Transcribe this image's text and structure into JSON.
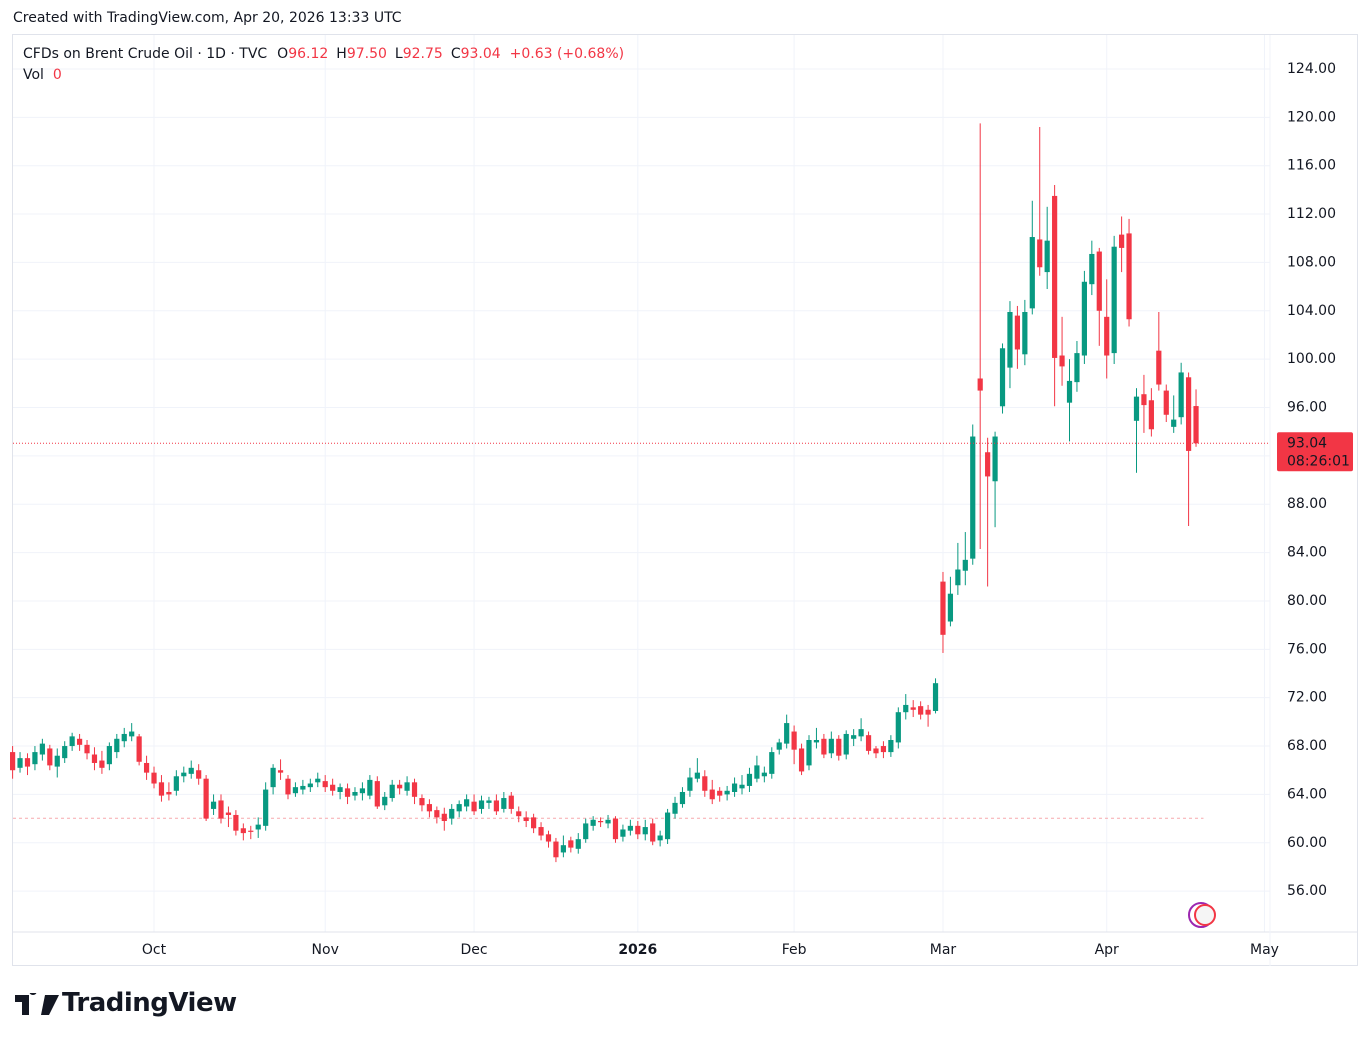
{
  "credit": "Created with TradingView.com, Apr 20, 2026 13:33 UTC",
  "brand": "TradingView",
  "chart_data": {
    "type": "candlestick",
    "legend": {
      "symbol": "CFDs on Brent Crude Oil · 1D · TVC",
      "fields": [
        {
          "key": "O",
          "value": "96.12"
        },
        {
          "key": "H",
          "value": "97.50"
        },
        {
          "key": "L",
          "value": "92.75"
        },
        {
          "key": "C",
          "value": "93.04"
        }
      ],
      "change": "+0.63 (+0.68%)",
      "volume_key": "Vol",
      "volume_value": "0"
    },
    "price_tag": {
      "value": 93.04,
      "label": "93.04",
      "countdown": "08:26:01"
    },
    "reference_line": 62.03,
    "up_color": "#089981",
    "down_color": "#f23645",
    "ylim": [
      52.62,
      126.81
    ],
    "yticks": [
      {
        "value": 56,
        "label": "56.00"
      },
      {
        "value": 60,
        "label": "60.00"
      },
      {
        "value": 64,
        "label": "64.00"
      },
      {
        "value": 68,
        "label": "68.00"
      },
      {
        "value": 72,
        "label": "72.00"
      },
      {
        "value": 76,
        "label": "76.00"
      },
      {
        "value": 80,
        "label": "80.00"
      },
      {
        "value": 84,
        "label": "84.00"
      },
      {
        "value": 88,
        "label": "88.00"
      },
      {
        "value": 92,
        "label": "92.00"
      },
      {
        "value": 96,
        "label": "96.00"
      },
      {
        "value": 100,
        "label": "100.00"
      },
      {
        "value": 104,
        "label": "104.00"
      },
      {
        "value": 108,
        "label": "108.00"
      },
      {
        "value": 112,
        "label": "112.00"
      },
      {
        "value": 116,
        "label": "116.00"
      },
      {
        "value": 120,
        "label": "120.00"
      },
      {
        "value": 124,
        "label": "124.00"
      }
    ],
    "grid": true,
    "future_categories": [
      "May"
    ],
    "categories": [
      null,
      null,
      null,
      null,
      null,
      null,
      null,
      null,
      null,
      null,
      null,
      null,
      null,
      null,
      null,
      null,
      null,
      null,
      null,
      "Oct",
      null,
      null,
      null,
      null,
      null,
      null,
      null,
      null,
      null,
      null,
      null,
      null,
      null,
      null,
      null,
      null,
      null,
      null,
      null,
      null,
      null,
      null,
      "Nov",
      null,
      null,
      null,
      null,
      null,
      null,
      null,
      null,
      null,
      null,
      null,
      null,
      null,
      null,
      null,
      null,
      null,
      null,
      null,
      "Dec",
      null,
      null,
      null,
      null,
      null,
      null,
      null,
      null,
      null,
      null,
      null,
      null,
      null,
      null,
      null,
      null,
      null,
      null,
      null,
      null,
      null,
      "2026",
      null,
      null,
      null,
      null,
      null,
      null,
      null,
      null,
      null,
      null,
      null,
      null,
      null,
      null,
      null,
      null,
      null,
      null,
      null,
      null,
      "Feb",
      null,
      null,
      null,
      null,
      null,
      null,
      null,
      null,
      null,
      null,
      null,
      null,
      null,
      null,
      null,
      null,
      null,
      null,
      null,
      "Mar",
      null,
      null,
      null,
      null,
      null,
      null,
      null,
      null,
      null,
      null,
      null,
      null,
      null,
      null,
      null,
      null,
      null,
      null,
      null,
      null,
      null,
      "Apr",
      null,
      null,
      null,
      null,
      null,
      null,
      null,
      null,
      null,
      null,
      null,
      null
    ],
    "ohlc": [
      [
        67.5,
        68,
        65.3,
        66
      ],
      [
        66.2,
        67.5,
        65.8,
        67
      ],
      [
        67,
        67.4,
        65.6,
        66.3
      ],
      [
        66.5,
        68,
        66,
        67.5
      ],
      [
        67.3,
        68.6,
        66.8,
        68.2
      ],
      [
        67.8,
        68.1,
        66,
        66.4
      ],
      [
        66.3,
        67.8,
        65.4,
        67.2
      ],
      [
        67,
        68.4,
        66.6,
        68
      ],
      [
        68,
        69.1,
        67.6,
        68.8
      ],
      [
        68.6,
        69,
        67.6,
        68.1
      ],
      [
        68.1,
        68.5,
        66.9,
        67.4
      ],
      [
        67.3,
        67.9,
        66,
        66.6
      ],
      [
        66.8,
        67.6,
        65.7,
        66.2
      ],
      [
        66.5,
        68.3,
        66,
        68
      ],
      [
        67.5,
        69,
        67,
        68.6
      ],
      [
        68.4,
        69.5,
        67.9,
        69
      ],
      [
        68.8,
        69.9,
        68.4,
        69.2
      ],
      [
        68.8,
        69,
        66.4,
        66.7
      ],
      [
        66.6,
        67.2,
        65.2,
        65.8
      ],
      [
        65.8,
        66.3,
        64.5,
        64.9
      ],
      [
        65,
        65.6,
        63.4,
        63.9
      ],
      [
        64.2,
        65,
        63.5,
        64
      ],
      [
        64.3,
        66,
        63.9,
        65.5
      ],
      [
        65.5,
        66.3,
        65,
        65.8
      ],
      [
        65.7,
        66.8,
        65.3,
        66.2
      ],
      [
        66,
        66.5,
        64.8,
        65.3
      ],
      [
        65.3,
        65.6,
        61.8,
        62
      ],
      [
        62.8,
        64,
        62.3,
        63.4
      ],
      [
        63.5,
        64,
        61.6,
        62
      ],
      [
        62.5,
        63,
        61.3,
        62.3
      ],
      [
        62.3,
        62.7,
        60.6,
        61
      ],
      [
        61.2,
        61.6,
        60.2,
        60.8
      ],
      [
        61,
        61.4,
        60.3,
        60.9
      ],
      [
        61.1,
        62.1,
        60.4,
        61.5
      ],
      [
        61.4,
        65,
        61,
        64.4
      ],
      [
        64.6,
        66.5,
        64,
        66.2
      ],
      [
        66,
        66.9,
        65.2,
        65.8
      ],
      [
        65.3,
        65.6,
        63.6,
        64
      ],
      [
        64.1,
        65,
        63.8,
        64.6
      ],
      [
        64.4,
        65.2,
        64,
        64.7
      ],
      [
        64.6,
        65.3,
        64.2,
        64.9
      ],
      [
        65,
        65.8,
        64.6,
        65.3
      ],
      [
        65.1,
        65.6,
        64.2,
        64.6
      ],
      [
        64.8,
        65.3,
        63.9,
        64.3
      ],
      [
        64.2,
        64.9,
        63.6,
        64.6
      ],
      [
        64.5,
        64.9,
        63.2,
        63.8
      ],
      [
        63.9,
        64.6,
        63.5,
        64.2
      ],
      [
        64.1,
        65,
        63.5,
        64.5
      ],
      [
        63.9,
        65.6,
        63.6,
        65.2
      ],
      [
        65.1,
        65.5,
        62.8,
        63
      ],
      [
        63.1,
        64.2,
        62.7,
        63.8
      ],
      [
        63.7,
        65.2,
        63.4,
        64.8
      ],
      [
        64.8,
        65.2,
        64,
        64.5
      ],
      [
        64.3,
        65.5,
        63.9,
        65
      ],
      [
        65,
        65.3,
        63.2,
        63.8
      ],
      [
        63.7,
        64,
        62.6,
        63.1
      ],
      [
        63.2,
        63.6,
        62.1,
        62.6
      ],
      [
        62.7,
        63,
        61.6,
        62.1
      ],
      [
        62.4,
        62.9,
        61,
        61.8
      ],
      [
        62,
        63.2,
        61.5,
        62.8
      ],
      [
        62.6,
        63.5,
        62.1,
        63.2
      ],
      [
        63,
        64,
        62.6,
        63.6
      ],
      [
        63.4,
        64,
        62.3,
        62.6
      ],
      [
        62.8,
        63.9,
        62.4,
        63.5
      ],
      [
        63.3,
        63.8,
        62.8,
        63.5
      ],
      [
        63.5,
        64,
        62.3,
        62.6
      ],
      [
        62.8,
        64.2,
        62.5,
        63.7
      ],
      [
        63.9,
        64.2,
        62.4,
        62.8
      ],
      [
        62.6,
        63,
        61.7,
        62.2
      ],
      [
        62.1,
        62.6,
        61.3,
        61.8
      ],
      [
        62.1,
        62.4,
        60.8,
        61.2
      ],
      [
        61.3,
        61.7,
        60.2,
        60.6
      ],
      [
        60.7,
        61,
        59.6,
        60.1
      ],
      [
        60.1,
        60.4,
        58.4,
        58.8
      ],
      [
        59.2,
        60.6,
        58.8,
        59.8
      ],
      [
        60.2,
        60.5,
        59.2,
        59.6
      ],
      [
        59.5,
        60.8,
        59.1,
        60.3
      ],
      [
        60.3,
        62,
        60,
        61.6
      ],
      [
        61.4,
        62.2,
        61,
        61.9
      ],
      [
        61.8,
        62.1,
        61.3,
        61.7
      ],
      [
        61.6,
        62.3,
        61.2,
        61.9
      ],
      [
        62,
        62.2,
        60,
        60.3
      ],
      [
        60.5,
        61.5,
        60.1,
        61.1
      ],
      [
        61,
        61.9,
        60.6,
        61.4
      ],
      [
        61.4,
        61.8,
        60.3,
        60.7
      ],
      [
        60.7,
        61.9,
        60.2,
        61.3
      ],
      [
        61.6,
        62,
        59.8,
        60.1
      ],
      [
        60.2,
        61,
        59.7,
        60.6
      ],
      [
        60.3,
        62.8,
        59.9,
        62.5
      ],
      [
        62.4,
        63.8,
        62,
        63.3
      ],
      [
        63.2,
        64.6,
        62.9,
        64.2
      ],
      [
        64.3,
        66.2,
        63.8,
        65.4
      ],
      [
        65.3,
        67,
        65,
        65.8
      ],
      [
        65.5,
        66,
        63.8,
        64.3
      ],
      [
        64.4,
        65.2,
        63.2,
        63.6
      ],
      [
        64.3,
        64.6,
        63.4,
        63.9
      ],
      [
        64,
        64.7,
        63.5,
        64.3
      ],
      [
        64.2,
        65.4,
        63.8,
        64.9
      ],
      [
        64.5,
        65.6,
        64,
        64.8
      ],
      [
        64.7,
        66.2,
        64.2,
        65.7
      ],
      [
        65.3,
        67.2,
        65,
        66.4
      ],
      [
        65.5,
        66.3,
        65,
        65.8
      ],
      [
        65.7,
        67.9,
        65.3,
        67.5
      ],
      [
        67.7,
        68.6,
        67.3,
        68.3
      ],
      [
        68.2,
        70.6,
        67.8,
        69.9
      ],
      [
        69.2,
        69.7,
        66.5,
        67.7
      ],
      [
        67.8,
        68.2,
        65.6,
        65.9
      ],
      [
        66.4,
        68.9,
        66,
        68.5
      ],
      [
        68.3,
        69.5,
        67.8,
        68.5
      ],
      [
        68.6,
        69,
        67,
        67.3
      ],
      [
        67.4,
        69.2,
        67,
        68.6
      ],
      [
        68.6,
        68.9,
        66.8,
        67.2
      ],
      [
        67.3,
        69.3,
        66.9,
        69
      ],
      [
        68.6,
        69.4,
        68,
        68.9
      ],
      [
        68.8,
        70.3,
        68.4,
        69.4
      ],
      [
        68.9,
        69.2,
        67.3,
        67.6
      ],
      [
        67.8,
        68,
        67,
        67.4
      ],
      [
        68,
        68.4,
        67,
        67.5
      ],
      [
        67.5,
        68.9,
        67.1,
        68.5
      ],
      [
        68.3,
        71.2,
        67.8,
        70.8
      ],
      [
        70.8,
        72.3,
        70.2,
        71.4
      ],
      [
        71.2,
        71.8,
        70.4,
        71
      ],
      [
        71.3,
        71.7,
        70.2,
        70.6
      ],
      [
        71,
        71.4,
        69.6,
        70.6
      ],
      [
        70.9,
        73.6,
        70.7,
        73.2
      ],
      [
        81.6,
        82.4,
        75.7,
        77.2
      ],
      [
        78.3,
        82,
        77.9,
        80.6
      ],
      [
        81.3,
        84.8,
        80.5,
        82.6
      ],
      [
        82.5,
        85.7,
        81.3,
        83.4
      ],
      [
        83.5,
        94.6,
        83,
        93.6
      ],
      [
        98.4,
        119.5,
        84.3,
        97.4
      ],
      [
        92.3,
        93.5,
        81.2,
        90.3
      ],
      [
        89.9,
        94,
        86.1,
        93.6
      ],
      [
        96.1,
        101.3,
        95.5,
        100.9
      ],
      [
        99.3,
        104.8,
        97.6,
        103.9
      ],
      [
        103.6,
        104.4,
        99.2,
        100.8
      ],
      [
        100.4,
        104.9,
        99.5,
        103.9
      ],
      [
        104.2,
        113.1,
        103.7,
        110.1
      ],
      [
        109.9,
        119.2,
        106.9,
        107.6
      ],
      [
        107.2,
        112.6,
        105.8,
        109.8
      ],
      [
        113.5,
        114.4,
        96.1,
        100.1
      ],
      [
        100.3,
        103.5,
        97.8,
        99.4
      ],
      [
        96.4,
        100,
        93.2,
        98.2
      ],
      [
        98.1,
        101.5,
        97.3,
        100.5
      ],
      [
        100.3,
        107.3,
        99.6,
        106.4
      ],
      [
        106.2,
        109.8,
        105.3,
        108.7
      ],
      [
        108.9,
        109.2,
        101.1,
        104
      ],
      [
        103.5,
        106.6,
        98.4,
        100.3
      ],
      [
        100.5,
        110.2,
        99.6,
        109.3
      ],
      [
        110.3,
        111.8,
        107.2,
        109.2
      ],
      [
        110.4,
        111.6,
        102.7,
        103.3
      ],
      [
        94.9,
        97.6,
        90.6,
        96.9
      ],
      [
        97.1,
        98.7,
        93.9,
        96.2
      ],
      [
        96.6,
        97.6,
        93.6,
        94.2
      ],
      [
        100.7,
        103.9,
        97.4,
        97.9
      ],
      [
        97.4,
        97.9,
        94.8,
        95.4
      ],
      [
        94.4,
        97,
        93.9,
        95
      ],
      [
        95.2,
        99.7,
        94.6,
        98.9
      ],
      [
        98.5,
        98.9,
        86.2,
        92.41
      ],
      [
        96.12,
        97.5,
        92.75,
        93.04
      ]
    ]
  }
}
